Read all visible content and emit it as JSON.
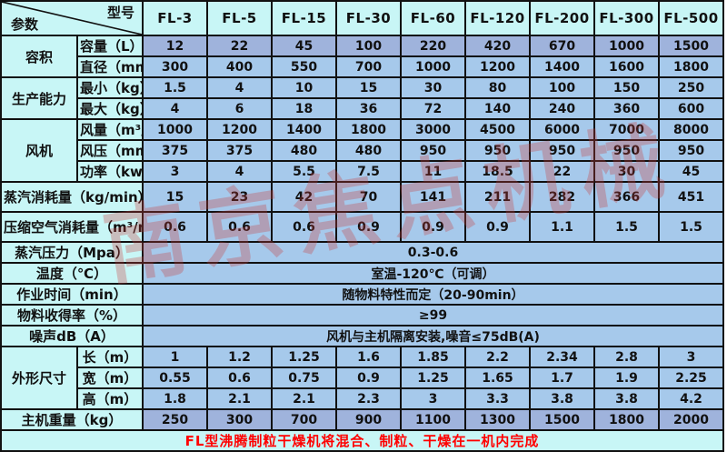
{
  "header": {
    "corner_top": "型号",
    "corner_bottom": "参数",
    "models": [
      "FL-3",
      "FL-5",
      "FL-15",
      "FL-30",
      "FL-60",
      "FL-120",
      "FL-200",
      "FL-300",
      "FL-500"
    ]
  },
  "rows": [
    {
      "group": {
        "label": "容积",
        "span": 2
      },
      "label": "容量（L）",
      "tint": "dark",
      "values": [
        "12",
        "22",
        "45",
        "100",
        "220",
        "420",
        "670",
        "1000",
        "1500"
      ]
    },
    {
      "label": "直径（mm）",
      "values": [
        "300",
        "400",
        "550",
        "700",
        "1000",
        "1200",
        "1400",
        "1600",
        "1800"
      ]
    },
    {
      "group": {
        "label": "生产能力",
        "span": 2
      },
      "label": "最小（kg）",
      "values": [
        "1.5",
        "4",
        "10",
        "15",
        "30",
        "80",
        "100",
        "150",
        "250"
      ]
    },
    {
      "label": "最大（kg）",
      "values": [
        "4",
        "6",
        "18",
        "36",
        "72",
        "140",
        "240",
        "360",
        "600"
      ]
    },
    {
      "group": {
        "label": "风机",
        "span": 3
      },
      "label": "风量（m³/h）",
      "values": [
        "1000",
        "1200",
        "1400",
        "1800",
        "3000",
        "4500",
        "6000",
        "7000",
        "8000"
      ]
    },
    {
      "label": "风压（mmH₂O）",
      "values": [
        "375",
        "375",
        "480",
        "480",
        "950",
        "950",
        "950",
        "950",
        "950"
      ]
    },
    {
      "label": "功率（kw）",
      "values": [
        "3",
        "4",
        "5.5",
        "7.5",
        "11",
        "18.5",
        "22",
        "30",
        "45"
      ]
    },
    {
      "label": "蒸汽消耗量（kg/min）",
      "wide": true,
      "tall": true,
      "values": [
        "15",
        "23",
        "42",
        "70",
        "141",
        "211",
        "282",
        "366",
        "451"
      ]
    },
    {
      "label": "压缩空气消耗量（m³/min）",
      "wide": true,
      "tall": true,
      "values": [
        "0.6",
        "0.6",
        "0.6",
        "0.9",
        "0.9",
        "0.9",
        "1.1",
        "1.5",
        "1.5"
      ]
    },
    {
      "label": "蒸汽压力（Mpa）",
      "wide": true,
      "merged": "0.3-0.6"
    },
    {
      "label": "温度（℃）",
      "wide": true,
      "merged": "室温-120℃（可调）"
    },
    {
      "label": "作业时间（min）",
      "wide": true,
      "merged": "随物料特性而定（20-90min）"
    },
    {
      "label": "物料收得率（%）",
      "wide": true,
      "merged": "≥99"
    },
    {
      "label": "噪声dB（A）",
      "wide": true,
      "merged": "风机与主机隔离安装,噪音≤75dB(A)"
    },
    {
      "group": {
        "label": "外形尺寸",
        "span": 3
      },
      "label": "长（m）",
      "values": [
        "1",
        "1.2",
        "1.25",
        "1.6",
        "1.85",
        "2.2",
        "2.34",
        "2.8",
        "3"
      ]
    },
    {
      "label": "宽（m）",
      "values": [
        "0.55",
        "0.6",
        "0.75",
        "0.9",
        "1.25",
        "1.65",
        "1.7",
        "1.9",
        "2.25"
      ]
    },
    {
      "label": "高（m）",
      "values": [
        "1.8",
        "2.1",
        "2.1",
        "2.3",
        "3",
        "3.3",
        "3.8",
        "3.8",
        "4.2"
      ]
    },
    {
      "label": "主机重量（kg）",
      "wide": true,
      "tint": "dark",
      "values": [
        "250",
        "300",
        "700",
        "900",
        "1100",
        "1300",
        "1500",
        "1800",
        "2000"
      ]
    }
  ],
  "footer": {
    "note": "FL型沸腾制粒干燥机将混合、制粒、干燥在一机内完成"
  },
  "watermark": {
    "text": "南京焦点机械"
  },
  "colors": {
    "header_bg": "#c8f6f6",
    "value_bg": "#a6c9eb",
    "value_bg_dark": "#9fb3dc",
    "border": "#111111",
    "footer_text": "#ff0000",
    "watermark": "#c83c3c"
  }
}
